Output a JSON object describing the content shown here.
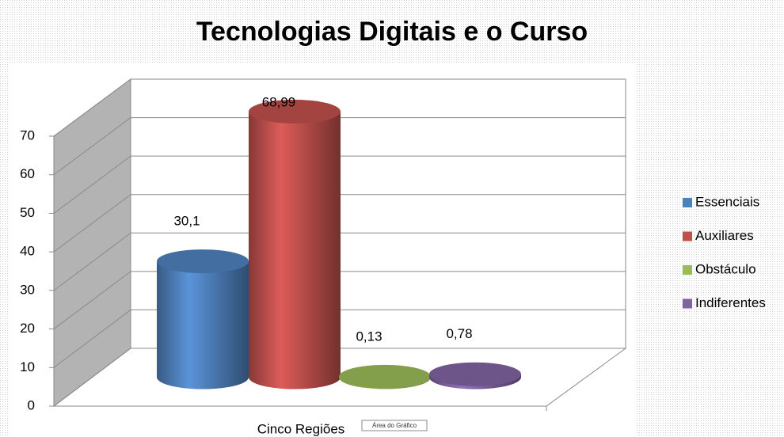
{
  "chart_data": {
    "type": "bar3d",
    "title": "Tecnologias Digitais e o Curso",
    "categories": [
      "Cinco Regiões"
    ],
    "series": [
      {
        "name": "Essenciais",
        "color": "#4f81bd",
        "values": [
          30.1
        ],
        "value_labels": [
          "30,1"
        ]
      },
      {
        "name": "Auxiliares",
        "color": "#c0504d",
        "values": [
          68.99
        ],
        "value_labels": [
          "68,99"
        ]
      },
      {
        "name": "Obstáculo",
        "color": "#9bbb59",
        "values": [
          0.13
        ],
        "value_labels": [
          "0,13"
        ]
      },
      {
        "name": "Indiferentes",
        "color": "#8064a2",
        "values": [
          0.78
        ],
        "value_labels": [
          "0,78"
        ]
      }
    ],
    "ylim": [
      0,
      70
    ],
    "yticks": [
      0,
      10,
      20,
      30,
      40,
      50,
      60,
      70
    ],
    "grid": true,
    "legend": "right",
    "tooltip": "Área do Gráfico"
  }
}
